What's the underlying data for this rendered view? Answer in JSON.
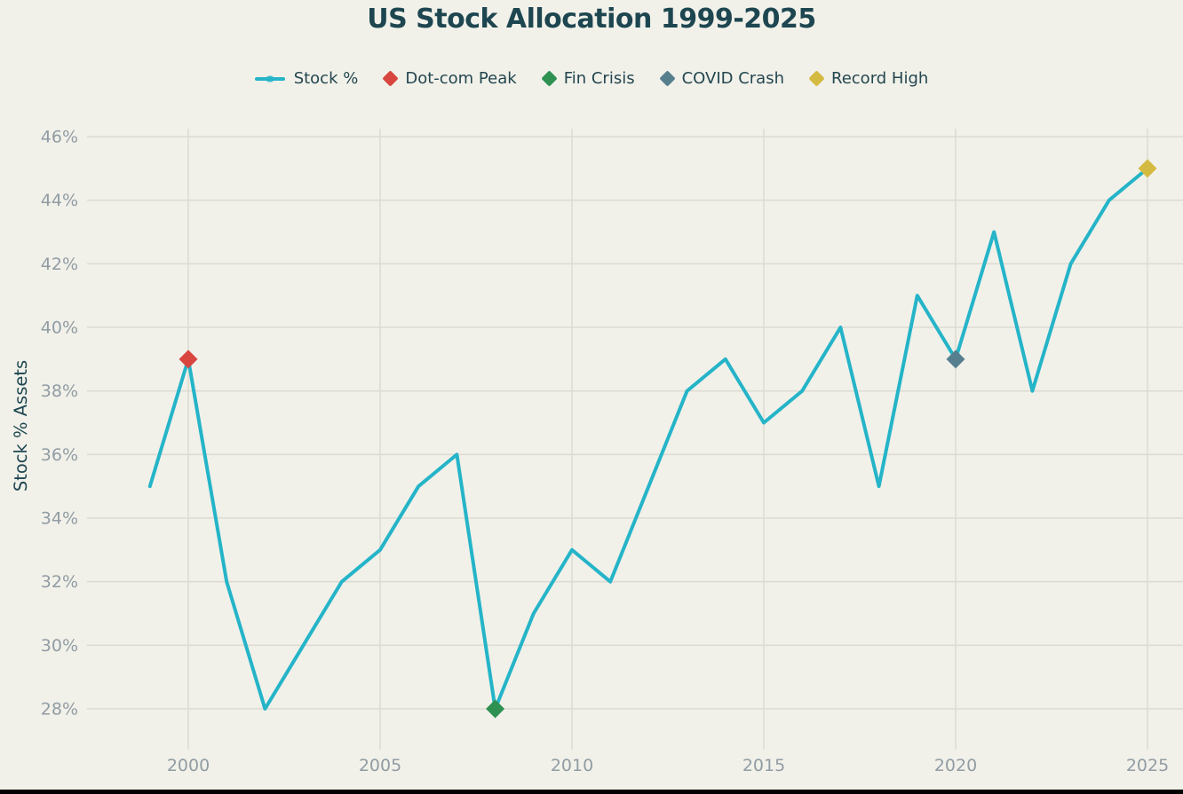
{
  "title": "US Stock Allocation 1999-2025",
  "colors": {
    "background": "#f1f1ea",
    "grid": "#dedcd2",
    "tick_label": "#919ca3",
    "heading_text": "#1d4650",
    "legend_text": "#24464f",
    "line": "#25b4c8",
    "bottom_edge": "#000000"
  },
  "legend": {
    "items": [
      {
        "label": "Stock %",
        "marker": "line",
        "color": "#25b4c8"
      },
      {
        "label": "Dot-com Peak",
        "marker": "diamond",
        "color": "#d8463f"
      },
      {
        "label": "Fin Crisis",
        "marker": "diamond",
        "color": "#2e9152"
      },
      {
        "label": "COVID Crash",
        "marker": "diamond",
        "color": "#567f8e"
      },
      {
        "label": "Record High",
        "marker": "diamond",
        "color": "#d5ba41"
      }
    ]
  },
  "chart_data": {
    "type": "line",
    "title": "US Stock Allocation 1999-2025",
    "xlabel": "",
    "ylabel": "Stock % Assets",
    "x": [
      1999,
      2000,
      2001,
      2002,
      2003,
      2004,
      2005,
      2006,
      2007,
      2008,
      2009,
      2010,
      2011,
      2012,
      2013,
      2014,
      2015,
      2016,
      2017,
      2018,
      2019,
      2020,
      2021,
      2022,
      2023,
      2024,
      2025
    ],
    "series": [
      {
        "name": "Stock %",
        "color": "#25b4c8",
        "values": [
          35,
          39,
          32,
          28,
          30,
          32,
          33,
          35,
          36,
          28,
          31,
          33,
          32,
          35,
          38,
          39,
          37,
          38,
          40,
          35,
          41,
          39,
          43,
          38,
          42,
          44,
          45
        ]
      }
    ],
    "annotations": [
      {
        "name": "Dot-com Peak",
        "x": 2000,
        "y": 39,
        "color": "#d8463f"
      },
      {
        "name": "Fin Crisis",
        "x": 2008,
        "y": 28,
        "color": "#2e9152"
      },
      {
        "name": "COVID Crash",
        "x": 2020,
        "y": 39,
        "color": "#567f8e"
      },
      {
        "name": "Record High",
        "x": 2025,
        "y": 45,
        "color": "#d5ba41"
      }
    ],
    "xlim": [
      1999,
      2025
    ],
    "ylim": [
      28,
      46
    ],
    "y_ticks": [
      28,
      30,
      32,
      34,
      36,
      38,
      40,
      42,
      44,
      46
    ],
    "y_tick_suffix": "%",
    "x_ticks": [
      2000,
      2005,
      2010,
      2015,
      2020,
      2025
    ],
    "grid": true,
    "legend_position": "top"
  }
}
